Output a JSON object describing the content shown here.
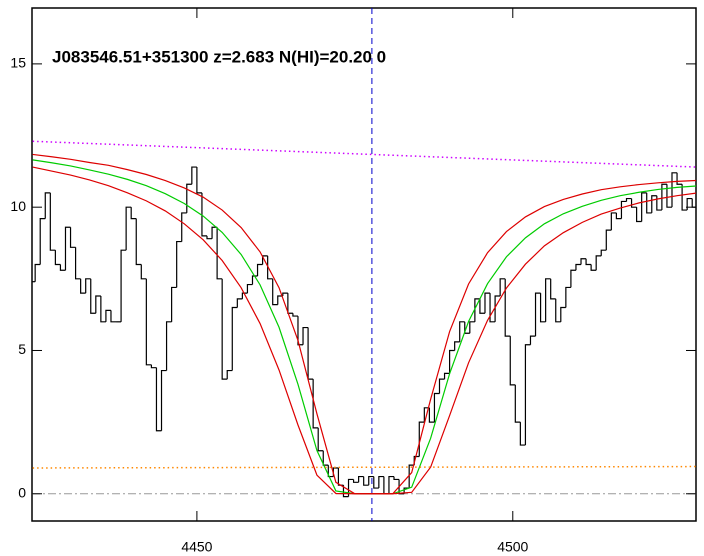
{
  "chart_data": {
    "type": "line",
    "title": "J083546.51+351300 z=2.683 N(HI)=20.20 0",
    "xlim": [
      4423.9,
      4529
    ],
    "ylim": [
      -0.95,
      16.95
    ],
    "xticks": [
      4450,
      4500
    ],
    "yticks": [
      0,
      5,
      10,
      15
    ],
    "hline": 0,
    "hline_color": "#999999",
    "vline": 4477.7,
    "vline_color": "#0000cc",
    "series": [
      {
        "style": "step",
        "color": "#000000",
        "x": [
          4424.0,
          4424.8,
          4425.6,
          4426.4,
          4427.2,
          4428.0,
          4428.8,
          4429.6,
          4430.4,
          4431.2,
          4432.0,
          4432.8,
          4433.6,
          4434.4,
          4435.2,
          4436.0,
          4436.8,
          4437.6,
          4438.4,
          4439.2,
          4440.0,
          4440.8,
          4441.6,
          4442.4,
          4443.2,
          4444.0,
          4444.8,
          4445.6,
          4446.4,
          4447.2,
          4448.0,
          4448.8,
          4449.6,
          4450.4,
          4451.2,
          4452.0,
          4452.8,
          4453.6,
          4454.4,
          4455.2,
          4456.0,
          4456.8,
          4457.6,
          4458.4,
          4459.2,
          4460.0,
          4460.8,
          4461.6,
          4462.4,
          4463.2,
          4464.0,
          4464.8,
          4465.6,
          4466.4,
          4467.2,
          4468.0,
          4468.8,
          4469.6,
          4470.4,
          4471.2,
          4472.0,
          4472.8,
          4473.6,
          4474.4,
          4475.2,
          4476.0,
          4476.8,
          4477.6,
          4478.4,
          4479.2,
          4480.0,
          4480.8,
          4481.6,
          4482.4,
          4483.2,
          4484.0,
          4484.8,
          4485.6,
          4486.4,
          4487.2,
          4488.0,
          4488.8,
          4489.6,
          4490.4,
          4491.2,
          4492.0,
          4492.8,
          4493.6,
          4494.4,
          4495.2,
          4496.0,
          4496.8,
          4497.6,
          4498.4,
          4499.2,
          4500.0,
          4500.8,
          4501.6,
          4502.4,
          4503.2,
          4504.0,
          4504.8,
          4505.6,
          4506.4,
          4507.2,
          4508.0,
          4508.8,
          4509.6,
          4510.4,
          4511.2,
          4512.0,
          4512.8,
          4513.6,
          4514.4,
          4515.2,
          4516.0,
          4516.8,
          4517.6,
          4518.4,
          4519.2,
          4520.0,
          4520.8,
          4521.6,
          4522.4,
          4523.2,
          4524.0,
          4524.8,
          4525.6,
          4526.4,
          4527.2,
          4528.0,
          4528.8
        ],
        "values": [
          7.4,
          8.0,
          9.6,
          10.5,
          8.5,
          8.0,
          7.8,
          9.3,
          8.6,
          7.5,
          7.0,
          7.5,
          6.3,
          6.9,
          6.0,
          6.4,
          6.0,
          6.0,
          8.5,
          10.0,
          9.6,
          8.0,
          7.5,
          4.5,
          4.4,
          2.2,
          4.3,
          6.0,
          7.2,
          8.8,
          9.8,
          10.8,
          11.4,
          10.5,
          9.0,
          8.9,
          9.3,
          7.5,
          4.0,
          4.3,
          6.5,
          6.8,
          7.0,
          7.3,
          7.6,
          8.0,
          8.3,
          7.5,
          6.6,
          6.9,
          7.0,
          6.3,
          6.2,
          5.2,
          5.8,
          4.0,
          2.3,
          1.5,
          1.0,
          0.6,
          0.9,
          0.3,
          -0.1,
          0.5,
          0.4,
          0.6,
          0.3,
          0.6,
          0.2,
          0.6,
          0.0,
          0.6,
          0.5,
          0.0,
          0.2,
          1.0,
          1.3,
          2.5,
          3.0,
          2.5,
          3.5,
          4.0,
          4.2,
          5.0,
          5.3,
          6.0,
          5.6,
          6.0,
          6.8,
          6.3,
          7.0,
          6.0,
          6.9,
          7.5,
          5.5,
          3.8,
          2.5,
          1.7,
          5.2,
          5.5,
          7.0,
          6.0,
          7.5,
          6.8,
          6.0,
          6.5,
          7.2,
          7.8,
          8.0,
          8.2,
          8.0,
          7.8,
          8.3,
          8.5,
          9.2,
          9.8,
          9.6,
          10.2,
          10.3,
          10.0,
          9.5,
          10.5,
          9.8,
          10.4,
          9.9,
          10.8,
          10.0,
          11.2,
          10.8,
          9.9,
          10.3,
          10.0
        ]
      },
      {
        "style": "solid",
        "color": "#00cc00",
        "x": [
          4424,
          4427,
          4430,
          4433,
          4436,
          4439,
          4442,
          4445,
          4448,
          4451,
          4454,
          4457,
          4460,
          4463,
          4466,
          4469,
          4472,
          4475,
          4478,
          4481,
          4484,
          4487,
          4490,
          4493,
          4496,
          4499,
          4502,
          4505,
          4508,
          4511,
          4514,
          4517,
          4520,
          4523,
          4526,
          4529
        ],
        "values": [
          11.65,
          11.55,
          11.44,
          11.3,
          11.15,
          10.97,
          10.75,
          10.47,
          10.13,
          9.69,
          9.12,
          8.35,
          7.29,
          5.81,
          3.82,
          1.51,
          0.1,
          0,
          0,
          0,
          0.23,
          1.94,
          4.19,
          6.01,
          7.33,
          8.27,
          8.93,
          9.42,
          9.77,
          10.03,
          10.24,
          10.4,
          10.52,
          10.62,
          10.69,
          10.74
        ]
      },
      {
        "style": "solid",
        "color": "#dd0000",
        "x": [
          4424,
          4427,
          4430,
          4433,
          4436,
          4439,
          4442,
          4445,
          4448,
          4451,
          4454,
          4457,
          4460,
          4463,
          4466,
          4469,
          4472,
          4475,
          4478,
          4481,
          4484,
          4487,
          4490,
          4493,
          4496,
          4499,
          4502,
          4505,
          4508,
          4511,
          4514,
          4517,
          4520,
          4523,
          4526,
          4529
        ],
        "values": [
          11.84,
          11.76,
          11.67,
          11.56,
          11.46,
          11.31,
          11.14,
          10.93,
          10.67,
          10.35,
          9.9,
          9.29,
          8.44,
          7.19,
          5.35,
          2.79,
          0.4,
          0,
          0,
          0,
          0.74,
          3.3,
          5.66,
          7.32,
          8.41,
          9.15,
          9.66,
          10.02,
          10.27,
          10.46,
          10.61,
          10.71,
          10.79,
          10.85,
          10.9,
          10.93
        ]
      },
      {
        "style": "solid",
        "color": "#dd0000",
        "x": [
          4424,
          4427,
          4430,
          4433,
          4436,
          4439,
          4442,
          4445,
          4448,
          4451,
          4454,
          4457,
          4460,
          4463,
          4466,
          4469,
          4472,
          4475,
          4478,
          4481,
          4484,
          4487,
          4490,
          4493,
          4496,
          4499,
          4502,
          4505,
          4508,
          4511,
          4514,
          4517,
          4520,
          4523,
          4526,
          4529
        ],
        "values": [
          11.4,
          11.26,
          11.12,
          10.95,
          10.75,
          10.5,
          10.22,
          9.87,
          9.42,
          8.86,
          8.14,
          7.19,
          5.94,
          4.32,
          2.4,
          0.65,
          0.01,
          0,
          0,
          0,
          0.05,
          0.93,
          2.73,
          4.57,
          6.05,
          7.18,
          8.01,
          8.65,
          9.11,
          9.47,
          9.76,
          9.97,
          10.15,
          10.29,
          10.4,
          10.49
        ]
      },
      {
        "style": "dotted",
        "color": "#cc00ff",
        "x": [
          4424,
          4529
        ],
        "values": [
          12.3,
          11.4
        ]
      },
      {
        "style": "dotted",
        "color": "#ff8800",
        "x": [
          4424,
          4529
        ],
        "values": [
          0.9,
          0.95
        ]
      }
    ]
  }
}
